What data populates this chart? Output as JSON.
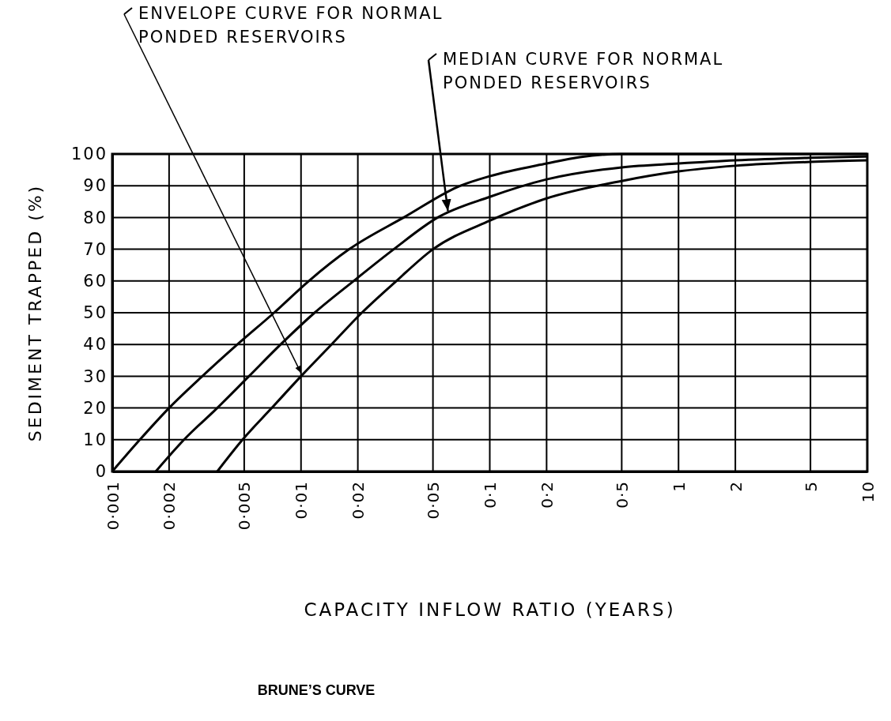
{
  "chart_data": {
    "type": "line",
    "title": "BRUNE’S CURVE",
    "xlabel": "CAPACITY INFLOW RATIO (YEARS)",
    "ylabel": "SEDIMENT TRAPPED (%)",
    "log": "x",
    "xlim": [
      0.001,
      10
    ],
    "ylim": [
      0,
      100
    ],
    "xticks": [
      {
        "value": 0.001,
        "label": "0·001"
      },
      {
        "value": 0.002,
        "label": "0·002"
      },
      {
        "value": 0.005,
        "label": "0·005"
      },
      {
        "value": 0.01,
        "label": "0·01"
      },
      {
        "value": 0.02,
        "label": "0·02"
      },
      {
        "value": 0.05,
        "label": "0·05"
      },
      {
        "value": 0.1,
        "label": "0·1"
      },
      {
        "value": 0.2,
        "label": "0·2"
      },
      {
        "value": 0.5,
        "label": "0·5"
      },
      1,
      2,
      5,
      10
    ],
    "yticks": [
      0,
      10,
      20,
      30,
      40,
      50,
      60,
      70,
      80,
      90,
      100
    ],
    "grid": true,
    "line_style": "solid",
    "marker": "none",
    "series": [
      {
        "color": "#000000",
        "x": [
          0.001,
          0.0014,
          0.002,
          0.003,
          0.0046,
          0.0072,
          0.011,
          0.018,
          0.035,
          0.07,
          0.1,
          0.2,
          0.3,
          0.5,
          10
        ],
        "values": [
          0,
          10,
          20,
          30,
          40,
          50,
          60,
          70,
          80,
          90,
          93,
          97,
          99,
          100,
          100
        ]
      },
      {
        "color": "#000000",
        "x": [
          0.0017,
          0.0024,
          0.0036,
          0.0053,
          0.0078,
          0.0118,
          0.019,
          0.031,
          0.053,
          0.1,
          0.2,
          0.5,
          1,
          2,
          5,
          10
        ],
        "values": [
          0,
          10,
          20,
          30,
          40,
          50,
          60,
          70,
          80,
          86.5,
          92,
          95.8,
          97,
          98,
          98.8,
          99.2
        ]
      },
      {
        "color": "#000000",
        "x": [
          0.0036,
          0.0049,
          0.007,
          0.01,
          0.0145,
          0.021,
          0.032,
          0.05,
          0.1,
          0.2,
          0.5,
          1,
          2,
          5,
          10
        ],
        "values": [
          0,
          10,
          20,
          30,
          40,
          50,
          60,
          70,
          79,
          86,
          91.5,
          94.5,
          96.3,
          97.5,
          98
        ]
      }
    ],
    "annotations": [
      {
        "text": "ENVELOPE CURVE FOR NORMAL PONDED RESERVOIRS",
        "x": 0.01,
        "y": 31
      },
      {
        "text": "MEDIAN CURVE FOR NORMAL PONDED RESERVOIRS",
        "x": 0.06,
        "y": 82
      }
    ]
  }
}
